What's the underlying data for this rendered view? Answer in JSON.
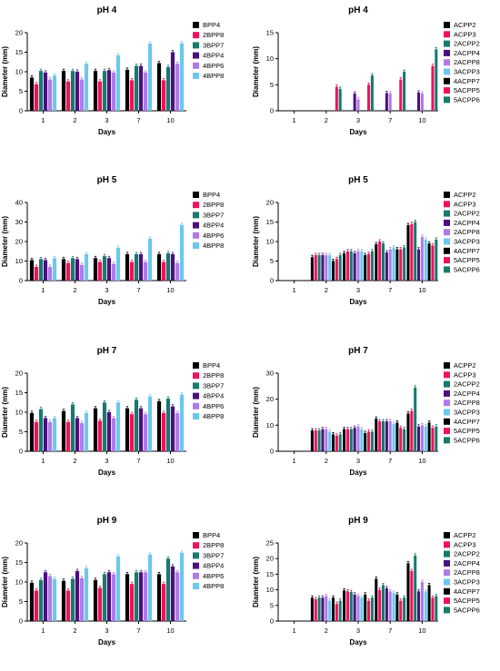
{
  "figure": {
    "colors": {
      "BPP4": "#000000",
      "2BPP8": "#f0115c",
      "3BPP7": "#167a6e",
      "4BPP4": "#4b0f7f",
      "4BPP6": "#b07ae6",
      "4BPP8": "#6cc7ef",
      "ACPP2": "#000000",
      "ACPP3": "#f0115c",
      "2ACPP2": "#167a6e",
      "2ACPP4": "#4b0f7f",
      "2ACPP8": "#b07ae6",
      "3ACPP3": "#6cc7ef",
      "4ACPP7": "#000000",
      "5ACPP5": "#f0115c",
      "5ACPP6": "#167a6e"
    }
  },
  "chart_data": [
    {
      "type": "bar",
      "title": "pH 4",
      "xlabel": "Days",
      "ylabel": "Diameter (mm)",
      "ylim": [
        0,
        20
      ],
      "yticks": [
        0,
        5,
        10,
        15,
        20
      ],
      "categories": [
        "1",
        "2",
        "3",
        "7",
        "10"
      ],
      "series": [
        {
          "name": "BPP4",
          "values": [
            8.5,
            10.2,
            10.2,
            10.5,
            12.2
          ]
        },
        {
          "name": "2BPP8",
          "values": [
            6.8,
            7.5,
            7.5,
            7.8,
            7.8
          ]
        },
        {
          "name": "3BPP7",
          "values": [
            10.2,
            10.2,
            10.2,
            11.5,
            11.2
          ]
        },
        {
          "name": "4BPP4",
          "values": [
            9.8,
            10.0,
            10.4,
            11.5,
            15.0
          ]
        },
        {
          "name": "4BPP6",
          "values": [
            8.0,
            8.0,
            9.8,
            9.8,
            12.0
          ]
        },
        {
          "name": "4BPP8",
          "values": [
            9.0,
            12.0,
            14.2,
            17.2,
            17.3
          ]
        }
      ]
    },
    {
      "type": "bar",
      "title": "pH 4",
      "xlabel": "Days",
      "ylabel": "Diameter (mm)",
      "ylim": [
        0,
        15
      ],
      "yticks": [
        0,
        5,
        10,
        15
      ],
      "categories": [
        "1",
        "2",
        "3",
        "7",
        "10"
      ],
      "series": [
        {
          "name": "ACPP2",
          "values": [
            0,
            0,
            0,
            0,
            0
          ]
        },
        {
          "name": "ACPP3",
          "values": [
            0,
            0,
            0,
            0,
            0
          ]
        },
        {
          "name": "2ACPP2",
          "values": [
            0,
            0,
            0,
            0,
            0
          ]
        },
        {
          "name": "2ACPP4",
          "values": [
            0,
            0,
            3.3,
            3.4,
            3.5
          ]
        },
        {
          "name": "2ACPP8",
          "values": [
            0,
            0,
            2.2,
            3.3,
            3.3
          ]
        },
        {
          "name": "3ACPP3",
          "values": [
            0,
            0,
            0,
            0,
            0
          ]
        },
        {
          "name": "4ACPP7",
          "values": [
            0,
            0,
            0,
            0,
            0
          ]
        },
        {
          "name": "5ACPP5",
          "values": [
            0,
            4.6,
            5.0,
            6.0,
            8.6
          ]
        },
        {
          "name": "5ACPP6",
          "values": [
            0,
            4.2,
            6.8,
            7.5,
            11.8
          ]
        }
      ]
    },
    {
      "type": "bar",
      "title": "pH 5",
      "xlabel": "Days",
      "ylabel": "Diameter (mm)",
      "ylim": [
        0,
        40
      ],
      "yticks": [
        0,
        10,
        20,
        30,
        40
      ],
      "categories": [
        "1",
        "2",
        "3",
        "7",
        "10"
      ],
      "series": [
        {
          "name": "BPP4",
          "values": [
            10.5,
            11.0,
            11.5,
            13.5,
            13.5
          ]
        },
        {
          "name": "2BPP8",
          "values": [
            7.0,
            9.0,
            9.5,
            9.5,
            9.5
          ]
        },
        {
          "name": "3BPP7",
          "values": [
            11.0,
            11.5,
            12.5,
            13.5,
            14.0
          ]
        },
        {
          "name": "4BPP4",
          "values": [
            10.5,
            11.0,
            11.5,
            13.5,
            13.5
          ]
        },
        {
          "name": "4BPP6",
          "values": [
            7.0,
            8.0,
            8.5,
            9.5,
            9.0
          ]
        },
        {
          "name": "4BPP8",
          "values": [
            11.5,
            13.5,
            16.8,
            21.5,
            28.5
          ]
        }
      ]
    },
    {
      "type": "bar",
      "title": "pH 5",
      "xlabel": "Days",
      "ylabel": "Diameter (mm)",
      "ylim": [
        0,
        20
      ],
      "yticks": [
        0,
        5,
        10,
        15,
        20
      ],
      "categories": [
        "1",
        "2",
        "3",
        "7",
        "10"
      ],
      "series": [
        {
          "name": "ACPP2",
          "values": [
            0,
            6.0,
            7.0,
            9.3,
            14.2
          ]
        },
        {
          "name": "ACPP3",
          "values": [
            0,
            6.5,
            7.5,
            10.0,
            14.5
          ]
        },
        {
          "name": "2ACPP2",
          "values": [
            0,
            6.5,
            7.5,
            9.5,
            15.0
          ]
        },
        {
          "name": "2ACPP4",
          "values": [
            0,
            6.5,
            7.0,
            7.2,
            8.0
          ]
        },
        {
          "name": "2ACPP8",
          "values": [
            0,
            6.5,
            7.5,
            8.0,
            11.2
          ]
        },
        {
          "name": "3ACPP3",
          "values": [
            0,
            6.5,
            7.5,
            8.5,
            10.5
          ]
        },
        {
          "name": "4ACPP7",
          "values": [
            0,
            5.0,
            6.5,
            8.0,
            9.5
          ]
        },
        {
          "name": "5ACPP5",
          "values": [
            0,
            5.5,
            6.8,
            8.0,
            9.0
          ]
        },
        {
          "name": "5ACPP6",
          "values": [
            0,
            6.5,
            7.5,
            8.5,
            10.5
          ]
        }
      ]
    },
    {
      "type": "bar",
      "title": "pH 7",
      "xlabel": "Days",
      "ylabel": "Diameter (mm)",
      "ylim": [
        0,
        20
      ],
      "yticks": [
        0,
        5,
        10,
        15,
        20
      ],
      "categories": [
        "1",
        "2",
        "3",
        "7",
        "10"
      ],
      "series": [
        {
          "name": "BPP4",
          "values": [
            9.8,
            10.3,
            11.0,
            11.0,
            12.8
          ]
        },
        {
          "name": "2BPP8",
          "values": [
            7.5,
            7.5,
            7.8,
            9.5,
            9.8
          ]
        },
        {
          "name": "3BPP7",
          "values": [
            10.8,
            12.0,
            12.5,
            13.2,
            13.5
          ]
        },
        {
          "name": "4BPP4",
          "values": [
            8.5,
            8.5,
            10.0,
            11.0,
            11.5
          ]
        },
        {
          "name": "4BPP6",
          "values": [
            7.5,
            7.2,
            8.5,
            9.5,
            9.8
          ]
        },
        {
          "name": "4BPP8",
          "values": [
            8.5,
            9.8,
            12.5,
            14.0,
            14.5
          ]
        }
      ]
    },
    {
      "type": "bar",
      "title": "pH 7",
      "xlabel": "Days",
      "ylabel": "Diameter (mm)",
      "ylim": [
        0,
        30
      ],
      "yticks": [
        0,
        10,
        20,
        30
      ],
      "categories": [
        "1",
        "2",
        "3",
        "7",
        "10"
      ],
      "series": [
        {
          "name": "ACPP2",
          "values": [
            0,
            8.0,
            8.5,
            12.5,
            14.5
          ]
        },
        {
          "name": "ACPP3",
          "values": [
            0,
            8.0,
            8.5,
            11.5,
            15.5
          ]
        },
        {
          "name": "2ACPP2",
          "values": [
            0,
            8.0,
            8.5,
            11.5,
            24.5
          ]
        },
        {
          "name": "2ACPP4",
          "values": [
            0,
            8.5,
            9.0,
            11.5,
            9.5
          ]
        },
        {
          "name": "2ACPP8",
          "values": [
            0,
            8.5,
            9.5,
            11.5,
            10.0
          ]
        },
        {
          "name": "3ACPP3",
          "values": [
            0,
            7.5,
            8.5,
            10.5,
            9.5
          ]
        },
        {
          "name": "4ACPP7",
          "values": [
            0,
            6.5,
            7.0,
            11.0,
            11.0
          ]
        },
        {
          "name": "5ACPP5",
          "values": [
            0,
            6.0,
            7.5,
            9.0,
            9.0
          ]
        },
        {
          "name": "5ACPP6",
          "values": [
            0,
            6.5,
            7.5,
            8.5,
            9.5
          ]
        }
      ]
    },
    {
      "type": "bar",
      "title": "pH 9",
      "xlabel": "Days",
      "ylabel": "Diameter (mm)",
      "ylim": [
        0,
        20
      ],
      "yticks": [
        0,
        5,
        10,
        15,
        20
      ],
      "categories": [
        "1",
        "2",
        "3",
        "7",
        "10"
      ],
      "series": [
        {
          "name": "BPP4",
          "values": [
            9.8,
            10.3,
            10.5,
            12.0,
            12.0
          ]
        },
        {
          "name": "2BPP8",
          "values": [
            7.8,
            7.8,
            8.5,
            9.5,
            9.5
          ]
        },
        {
          "name": "3BPP7",
          "values": [
            10.5,
            10.8,
            12.0,
            12.5,
            16.0
          ]
        },
        {
          "name": "4BPP4",
          "values": [
            12.5,
            12.8,
            12.5,
            12.5,
            14.0
          ]
        },
        {
          "name": "4BPP6",
          "values": [
            11.5,
            11.0,
            12.0,
            12.5,
            12.5
          ]
        },
        {
          "name": "4BPP8",
          "values": [
            10.8,
            13.5,
            16.5,
            17.0,
            17.5
          ]
        }
      ]
    },
    {
      "type": "bar",
      "title": "pH 9",
      "xlabel": "Days",
      "ylabel": "Diameter (mm)",
      "ylim": [
        0,
        25
      ],
      "yticks": [
        0,
        5,
        10,
        15,
        20,
        25
      ],
      "categories": [
        "1",
        "2",
        "3",
        "7",
        "10"
      ],
      "series": [
        {
          "name": "ACPP2",
          "values": [
            0,
            7.5,
            9.8,
            13.5,
            18.5
          ]
        },
        {
          "name": "ACPP3",
          "values": [
            0,
            7.0,
            9.5,
            10.0,
            16.0
          ]
        },
        {
          "name": "2ACPP2",
          "values": [
            0,
            7.5,
            9.3,
            11.5,
            21.0
          ]
        },
        {
          "name": "2ACPP4",
          "values": [
            0,
            7.5,
            8.5,
            10.5,
            9.5
          ]
        },
        {
          "name": "2ACPP8",
          "values": [
            0,
            8.0,
            8.0,
            9.5,
            12.5
          ]
        },
        {
          "name": "3ACPP3",
          "values": [
            0,
            6.5,
            7.5,
            9.0,
            9.5
          ]
        },
        {
          "name": "4ACPP7",
          "values": [
            0,
            7.5,
            8.5,
            8.5,
            11.5
          ]
        },
        {
          "name": "5ACPP5",
          "values": [
            0,
            5.5,
            6.5,
            6.5,
            7.5
          ]
        },
        {
          "name": "5ACPP6",
          "values": [
            0,
            6.5,
            7.5,
            7.5,
            8.0
          ]
        }
      ]
    }
  ]
}
